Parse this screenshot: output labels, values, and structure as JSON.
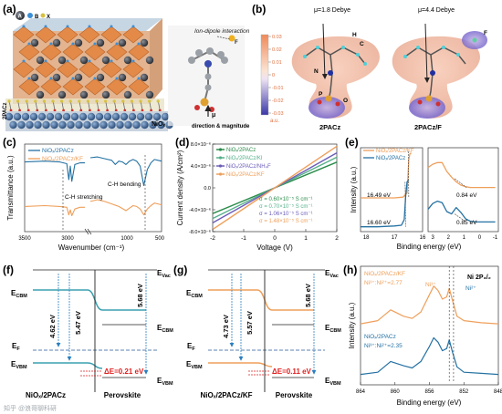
{
  "panel_labels": [
    "(a)",
    "(b)",
    "(c)",
    "(d)",
    "(e)",
    "(h)",
    "(f)",
    "(g)"
  ],
  "colors": {
    "blue": "#2471a3",
    "orange": "#ef9f5a",
    "green_legend": "#3aa66b",
    "purple_legend": "#6b5db8",
    "dark_blue_legend": "#1f5a8a",
    "red_dashed": "#e02020",
    "cbm_blue": "#3aa0b0"
  },
  "watermark": "知乎 @浪哥聊科研",
  "panel_a": {
    "legend_letters": [
      "A",
      "B",
      "X"
    ],
    "callout": "Ion-dipole interaction",
    "arrow_caption": "direction & magnitude",
    "mu_symbol": "μ",
    "f_label": "F",
    "layer_labels": [
      "2PACz",
      "NiOₓ"
    ]
  },
  "panel_b": {
    "dipole_left": "μ=1.8 Debye",
    "dipole_right": "μ=4.4 Debye",
    "name_left": "2PACz",
    "name_right": "2PACz/F",
    "atom_labels": [
      "H",
      "C",
      "N",
      "P",
      "O",
      "F"
    ],
    "colorbar_ticks": [
      "0.03",
      "0.02",
      "0.01",
      "0",
      "-0.01",
      "-0.02",
      "-0.03"
    ],
    "colorbar_unit": "a.u."
  },
  "chart_data": [
    {
      "panel": "c",
      "type": "line",
      "xlabel": "Wavenumber (cm⁻¹)",
      "ylabel": "Transmittance (a.u.)",
      "x_ticks": [
        "3500",
        "3000",
        "1000",
        "500"
      ],
      "axis_break": true,
      "legend": [
        "NiOₓ/2PACz",
        "NiOₓ/2PACz/KF"
      ],
      "annotations": [
        "C-H stretching",
        "C-H bending"
      ],
      "series": [
        {
          "name": "NiOₓ/2PACz",
          "color": "#2471a3",
          "x": [
            3500,
            3300,
            3150,
            3080,
            3060,
            3045,
            3030,
            3000,
            2950,
            2900,
            1500,
            1400,
            1300,
            1200,
            1150,
            1100,
            1050,
            1000,
            950,
            900,
            850,
            800,
            750,
            720,
            700,
            650,
            600,
            550,
            500
          ],
          "y": [
            0.83,
            0.84,
            0.83,
            0.81,
            0.62,
            0.78,
            0.6,
            0.8,
            0.82,
            0.82,
            0.88,
            0.89,
            0.87,
            0.85,
            0.8,
            0.84,
            0.83,
            0.8,
            0.84,
            0.86,
            0.84,
            0.78,
            0.55,
            0.66,
            0.74,
            0.82,
            0.86,
            0.85,
            0.84
          ]
        },
        {
          "name": "NiOₓ/2PACz/KF",
          "color": "#ef9f5a",
          "x": [
            3500,
            3300,
            3150,
            3080,
            3060,
            3045,
            3030,
            3000,
            2950,
            2900,
            1500,
            1400,
            1300,
            1200,
            1100,
            1000,
            950,
            900,
            850,
            800,
            750,
            720,
            700,
            650,
            600,
            550,
            500
          ],
          "y": [
            0.3,
            0.31,
            0.3,
            0.29,
            0.2,
            0.26,
            0.19,
            0.27,
            0.29,
            0.29,
            0.36,
            0.38,
            0.36,
            0.33,
            0.3,
            0.25,
            0.28,
            0.31,
            0.3,
            0.27,
            0.2,
            0.24,
            0.27,
            0.31,
            0.34,
            0.33,
            0.32
          ]
        }
      ]
    },
    {
      "panel": "d",
      "type": "line",
      "xlabel": "Voltage (V)",
      "ylabel": "Current density (A/cm²)",
      "xlim": [
        -2,
        2
      ],
      "ylim": [
        -8e-06,
        8e-06
      ],
      "x_ticks": [
        "-2",
        "-1",
        "0",
        "1",
        "2"
      ],
      "y_ticks": [
        "-8.0×10⁻⁶",
        "-4.0×10⁻⁶",
        "0.0",
        "4.0×10⁻⁶",
        "8.0×10⁻⁶"
      ],
      "series": [
        {
          "name": "NiOₓ/2PACz",
          "color": "#2a8c4a",
          "x": [
            -2,
            2
          ],
          "y": [
            -4.7e-06,
            4.7e-06
          ]
        },
        {
          "name": "NiOₓ/2PACz/KI",
          "color": "#55b08a",
          "x": [
            -2,
            2
          ],
          "y": [
            -5.6e-06,
            5.6e-06
          ]
        },
        {
          "name": "NiOₓ/2PACz/NH₄F",
          "color": "#6b5db8",
          "x": [
            -2,
            2
          ],
          "y": [
            -6.4e-06,
            6.4e-06
          ]
        },
        {
          "name": "NiOₓ/2PACz/KF",
          "color": "#ef9f5a",
          "x": [
            -2,
            2
          ],
          "y": [
            -7.6e-06,
            7.6e-06
          ]
        }
      ],
      "sigma_labels": [
        "σ = 0.60×10⁻⁵ S cm⁻¹",
        "σ = 0.70×10⁻⁵ S cm⁻¹",
        "σ = 1.06×10⁻⁵ S cm⁻¹",
        "σ = 1.48×10⁻⁵ S cm⁻¹"
      ]
    },
    {
      "panel": "e",
      "type": "line",
      "xlabel": "Binding energy (eV)",
      "ylabel": "Intensity (a.u.)",
      "legend": [
        "NiOₓ/2PACz/KF",
        "NiOₓ/2PACz"
      ],
      "left_x_ticks": [
        "18",
        "17",
        "16"
      ],
      "right_x_ticks": [
        "3",
        "2",
        "1",
        "0",
        "-1"
      ],
      "annotations": [
        "16.49 eV",
        "16.60 eV",
        "0.84 eV",
        "0.85 eV"
      ],
      "series": [
        {
          "name": "NiOₓ/2PACz/KF",
          "color": "#ef9f5a",
          "x": [
            18.2,
            17.6,
            17.0,
            16.7,
            16.55,
            16.49,
            16.45,
            16.4
          ],
          "y": [
            0.42,
            0.42,
            0.42,
            0.43,
            0.48,
            0.9,
            0.97,
            0.98
          ]
        },
        {
          "name": "NiOₓ/2PACz",
          "color": "#2471a3",
          "x": [
            18.2,
            17.6,
            17.0,
            16.75,
            16.65,
            16.6,
            16.55,
            16.5
          ],
          "y": [
            0.06,
            0.06,
            0.07,
            0.08,
            0.15,
            0.45,
            0.62,
            0.64
          ]
        },
        {
          "name": "NiOₓ/2PACz/KF VB",
          "color": "#ef9f5a",
          "x": [
            3.3,
            3.0,
            2.7,
            2.4,
            2.1,
            1.8,
            1.5,
            1.2,
            0.9,
            0.6,
            0.2,
            -0.2,
            -0.6,
            -1.0
          ],
          "y": [
            0.8,
            0.84,
            0.86,
            0.86,
            0.75,
            0.68,
            0.62,
            0.58,
            0.56,
            0.55,
            0.55,
            0.55,
            0.55,
            0.55
          ]
        },
        {
          "name": "NiOₓ/2PACz VB",
          "color": "#2471a3",
          "x": [
            3.3,
            3.0,
            2.7,
            2.4,
            2.1,
            1.8,
            1.5,
            1.2,
            0.9,
            0.6,
            0.2,
            -0.2,
            -0.6,
            -1.0
          ],
          "y": [
            0.28,
            0.35,
            0.38,
            0.36,
            0.25,
            0.22,
            0.3,
            0.24,
            0.16,
            0.13,
            0.12,
            0.12,
            0.12,
            0.12
          ]
        }
      ]
    },
    {
      "panel": "h",
      "type": "line",
      "xlabel": "Binding energy (eV)",
      "ylabel": "Intensity (a.u.)",
      "xlim": [
        864,
        848
      ],
      "x_ticks": [
        "864",
        "860",
        "856",
        "852",
        "848"
      ],
      "title": "Ni 2P₃/₂",
      "annotations": [
        "Ni³⁺",
        "Ni²⁺",
        "NiOₓ/2PACz/KF",
        "Ni³⁺:Ni²⁺=2.77",
        "NiOₓ/2PACz",
        "Ni³⁺:Ni²⁺=2.35"
      ],
      "series": [
        {
          "name": "NiOₓ/2PACz/KF",
          "color": "#ef9f5a",
          "x": [
            864,
            862,
            860.5,
            859,
            858,
            857,
            856,
            855.5,
            855,
            854.5,
            854,
            853.7,
            853.3,
            852.8,
            852,
            850,
            848
          ],
          "y": [
            0.55,
            0.58,
            0.68,
            0.62,
            0.6,
            0.66,
            0.82,
            0.9,
            0.86,
            0.78,
            0.8,
            0.88,
            0.76,
            0.62,
            0.58,
            0.56,
            0.55
          ]
        },
        {
          "name": "NiOₓ/2PACz",
          "color": "#2471a3",
          "x": [
            864,
            862,
            860.5,
            859,
            858,
            857,
            856,
            855.5,
            855,
            854.5,
            854,
            853.7,
            853.3,
            852.8,
            852,
            850,
            848
          ],
          "y": [
            0.08,
            0.1,
            0.2,
            0.16,
            0.14,
            0.2,
            0.34,
            0.42,
            0.38,
            0.3,
            0.32,
            0.4,
            0.28,
            0.15,
            0.1,
            0.09,
            0.08
          ]
        }
      ]
    }
  ],
  "panel_f": {
    "e_cbm": "E",
    "cbm_sub": "CBM",
    "e_vbm": "E",
    "vbm_sub": "VBM",
    "e_f": "E",
    "f_sub": "F",
    "e_vac": "E",
    "vac_sub": "Vac",
    "gap1": "4.62 eV",
    "gap2": "5.47 eV",
    "gap3": "5.68 eV",
    "delta": "ΔE=0.21 eV",
    "label_left": "NiOₓ/2PACz",
    "label_right": "Perovskite"
  },
  "panel_g": {
    "gap1": "4.73 eV",
    "gap2": "5.57 eV",
    "gap3": "5.68 eV",
    "delta": "ΔE=0.11 eV",
    "label_left": "NiOₓ/2PACz/KF",
    "label_right": "Perovskite"
  }
}
